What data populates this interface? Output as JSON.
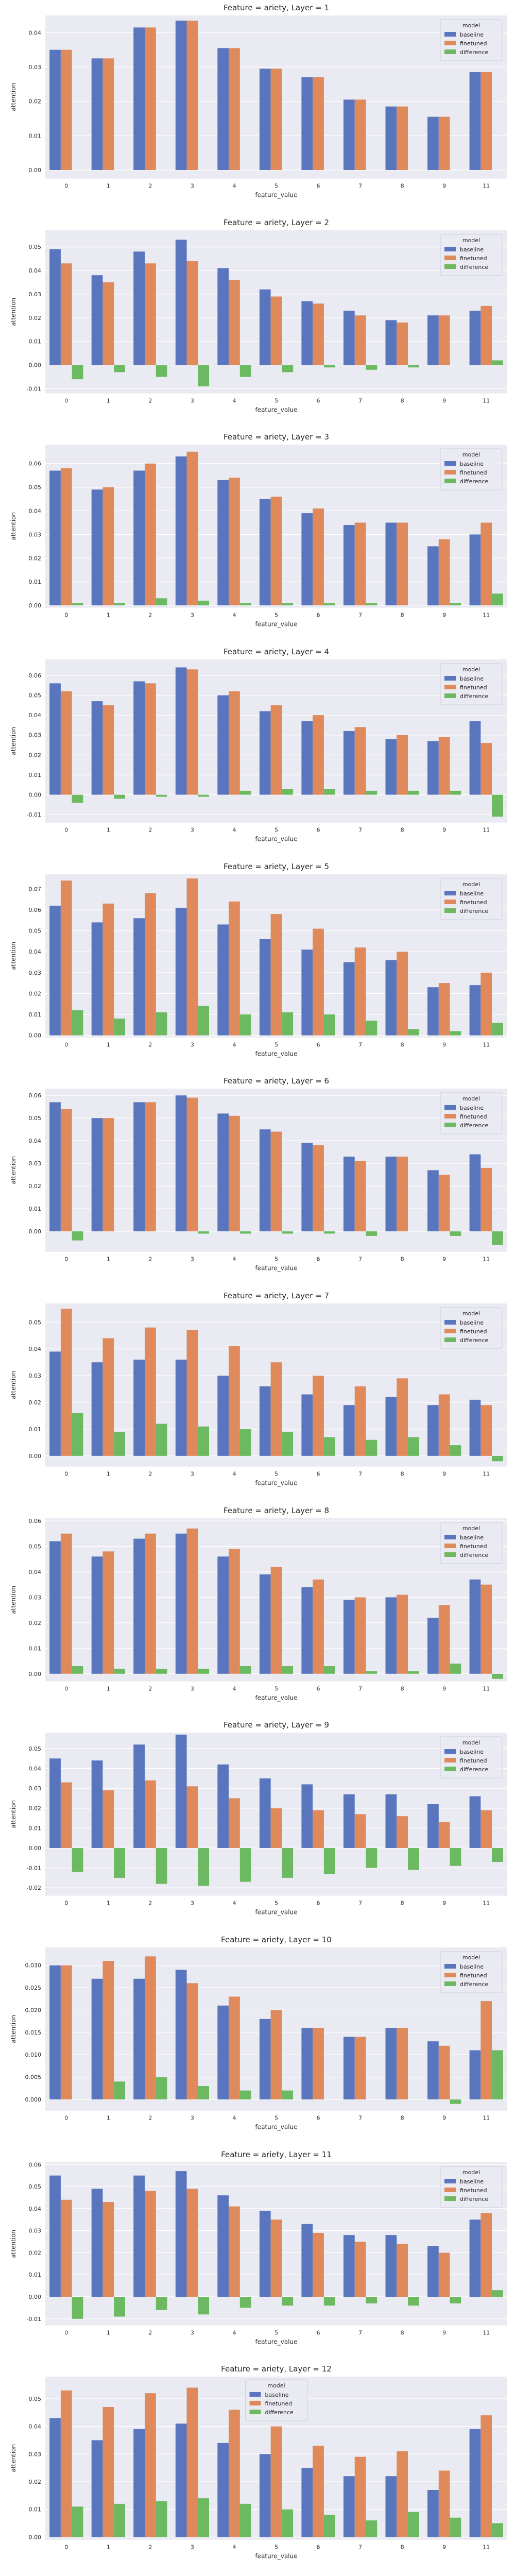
{
  "chart_data": [
    {
      "type": "bar",
      "title": "Feature = ariety, Layer = 1",
      "xlabel": "feature_value",
      "ylabel": "attention",
      "categories": [
        "0",
        "1",
        "2",
        "3",
        "4",
        "5",
        "6",
        "7",
        "8",
        "9",
        "11"
      ],
      "ylim": [
        -0.0025,
        0.045
      ],
      "yticks": [
        0.0,
        0.01,
        0.02,
        0.03,
        0.04
      ],
      "grid": true,
      "legend": {
        "title": "model",
        "position": "top-right"
      },
      "series": [
        {
          "name": "baseline",
          "color": "#5875be",
          "values": [
            0.035,
            0.0325,
            0.0415,
            0.0435,
            0.0355,
            0.0295,
            0.027,
            0.0205,
            0.0185,
            0.0155,
            0.0285
          ]
        },
        {
          "name": "finetuned",
          "color": "#e0895b",
          "values": [
            0.035,
            0.0325,
            0.0415,
            0.0435,
            0.0355,
            0.0295,
            0.027,
            0.0205,
            0.0185,
            0.0155,
            0.0285
          ]
        },
        {
          "name": "difference",
          "color": "#6cb962",
          "values": [
            0,
            0,
            0,
            0,
            0,
            0,
            0,
            0,
            0,
            0,
            0
          ]
        }
      ]
    },
    {
      "type": "bar",
      "title": "Feature = ariety, Layer = 2",
      "xlabel": "feature_value",
      "ylabel": "attention",
      "categories": [
        "0",
        "1",
        "2",
        "3",
        "4",
        "5",
        "6",
        "7",
        "8",
        "9",
        "11"
      ],
      "ylim": [
        -0.012,
        0.057
      ],
      "yticks": [
        -0.01,
        0.0,
        0.01,
        0.02,
        0.03,
        0.04,
        0.05
      ],
      "grid": true,
      "legend": {
        "title": "model",
        "position": "top-right"
      },
      "series": [
        {
          "name": "baseline",
          "color": "#5875be",
          "values": [
            0.049,
            0.038,
            0.048,
            0.053,
            0.041,
            0.032,
            0.027,
            0.023,
            0.019,
            0.021,
            0.023
          ]
        },
        {
          "name": "finetuned",
          "color": "#e0895b",
          "values": [
            0.043,
            0.035,
            0.043,
            0.044,
            0.036,
            0.029,
            0.026,
            0.021,
            0.018,
            0.021,
            0.025
          ]
        },
        {
          "name": "difference",
          "color": "#6cb962",
          "values": [
            -0.006,
            -0.003,
            -0.005,
            -0.009,
            -0.005,
            -0.003,
            -0.001,
            -0.002,
            -0.001,
            0.0,
            0.002
          ]
        }
      ]
    },
    {
      "type": "bar",
      "title": "Feature = ariety, Layer = 3",
      "xlabel": "feature_value",
      "ylabel": "attention",
      "categories": [
        "0",
        "1",
        "2",
        "3",
        "4",
        "5",
        "6",
        "7",
        "8",
        "9",
        "11"
      ],
      "ylim": [
        -0.001,
        0.068
      ],
      "yticks": [
        0.0,
        0.01,
        0.02,
        0.03,
        0.04,
        0.05,
        0.06
      ],
      "grid": true,
      "legend": {
        "title": "model",
        "position": "top-right"
      },
      "series": [
        {
          "name": "baseline",
          "color": "#5875be",
          "values": [
            0.057,
            0.049,
            0.057,
            0.063,
            0.053,
            0.045,
            0.039,
            0.034,
            0.035,
            0.025,
            0.03
          ]
        },
        {
          "name": "finetuned",
          "color": "#e0895b",
          "values": [
            0.058,
            0.05,
            0.06,
            0.065,
            0.054,
            0.046,
            0.041,
            0.035,
            0.035,
            0.028,
            0.035
          ]
        },
        {
          "name": "difference",
          "color": "#6cb962",
          "values": [
            0.001,
            0.001,
            0.003,
            0.002,
            0.001,
            0.001,
            0.001,
            0.001,
            0.0,
            0.001,
            0.005
          ]
        }
      ]
    },
    {
      "type": "bar",
      "title": "Feature = ariety, Layer = 4",
      "xlabel": "feature_value",
      "ylabel": "attention",
      "categories": [
        "0",
        "1",
        "2",
        "3",
        "4",
        "5",
        "6",
        "7",
        "8",
        "9",
        "11"
      ],
      "ylim": [
        -0.014,
        0.068
      ],
      "yticks": [
        -0.01,
        0.0,
        0.01,
        0.02,
        0.03,
        0.04,
        0.05,
        0.06
      ],
      "grid": true,
      "legend": {
        "title": "model",
        "position": "top-right"
      },
      "series": [
        {
          "name": "baseline",
          "color": "#5875be",
          "values": [
            0.056,
            0.047,
            0.057,
            0.064,
            0.05,
            0.042,
            0.037,
            0.032,
            0.028,
            0.027,
            0.037
          ]
        },
        {
          "name": "finetuned",
          "color": "#e0895b",
          "values": [
            0.052,
            0.045,
            0.056,
            0.063,
            0.052,
            0.045,
            0.04,
            0.034,
            0.03,
            0.029,
            0.026
          ]
        },
        {
          "name": "difference",
          "color": "#6cb962",
          "values": [
            -0.004,
            -0.002,
            -0.001,
            -0.001,
            0.002,
            0.003,
            0.003,
            0.002,
            0.002,
            0.002,
            -0.011
          ]
        }
      ]
    },
    {
      "type": "bar",
      "title": "Feature = ariety, Layer = 5",
      "xlabel": "feature_value",
      "ylabel": "attention",
      "categories": [
        "0",
        "1",
        "2",
        "3",
        "4",
        "5",
        "6",
        "7",
        "8",
        "9",
        "11"
      ],
      "ylim": [
        -0.001,
        0.077
      ],
      "yticks": [
        0.0,
        0.01,
        0.02,
        0.03,
        0.04,
        0.05,
        0.06,
        0.07
      ],
      "grid": true,
      "legend": {
        "title": "model",
        "position": "top-right"
      },
      "series": [
        {
          "name": "baseline",
          "color": "#5875be",
          "values": [
            0.062,
            0.054,
            0.056,
            0.061,
            0.053,
            0.046,
            0.041,
            0.035,
            0.036,
            0.023,
            0.024
          ]
        },
        {
          "name": "finetuned",
          "color": "#e0895b",
          "values": [
            0.074,
            0.063,
            0.068,
            0.075,
            0.064,
            0.058,
            0.051,
            0.042,
            0.04,
            0.025,
            0.03
          ]
        },
        {
          "name": "difference",
          "color": "#6cb962",
          "values": [
            0.012,
            0.008,
            0.011,
            0.014,
            0.01,
            0.011,
            0.01,
            0.007,
            0.003,
            0.002,
            0.006
          ]
        }
      ]
    },
    {
      "type": "bar",
      "title": "Feature = ariety, Layer = 6",
      "xlabel": "feature_value",
      "ylabel": "attention",
      "categories": [
        "0",
        "1",
        "2",
        "3",
        "4",
        "5",
        "6",
        "7",
        "8",
        "9",
        "11"
      ],
      "ylim": [
        -0.009,
        0.063
      ],
      "yticks": [
        0.0,
        0.01,
        0.02,
        0.03,
        0.04,
        0.05,
        0.06
      ],
      "grid": true,
      "legend": {
        "title": "model",
        "position": "top-right"
      },
      "series": [
        {
          "name": "baseline",
          "color": "#5875be",
          "values": [
            0.057,
            0.05,
            0.057,
            0.06,
            0.052,
            0.045,
            0.039,
            0.033,
            0.033,
            0.027,
            0.034
          ]
        },
        {
          "name": "finetuned",
          "color": "#e0895b",
          "values": [
            0.054,
            0.05,
            0.057,
            0.059,
            0.051,
            0.044,
            0.038,
            0.031,
            0.033,
            0.025,
            0.028
          ]
        },
        {
          "name": "difference",
          "color": "#6cb962",
          "values": [
            -0.004,
            0.0,
            0.0,
            -0.001,
            -0.001,
            -0.001,
            -0.001,
            -0.002,
            0.0,
            -0.002,
            -0.006
          ]
        }
      ]
    },
    {
      "type": "bar",
      "title": "Feature = ariety, Layer = 7",
      "xlabel": "feature_value",
      "ylabel": "attention",
      "categories": [
        "0",
        "1",
        "2",
        "3",
        "4",
        "5",
        "6",
        "7",
        "8",
        "9",
        "11"
      ],
      "ylim": [
        -0.004,
        0.057
      ],
      "yticks": [
        0.0,
        0.01,
        0.02,
        0.03,
        0.04,
        0.05
      ],
      "grid": true,
      "legend": {
        "title": "model",
        "position": "top-right"
      },
      "series": [
        {
          "name": "baseline",
          "color": "#5875be",
          "values": [
            0.039,
            0.035,
            0.036,
            0.036,
            0.03,
            0.026,
            0.023,
            0.019,
            0.022,
            0.019,
            0.021
          ]
        },
        {
          "name": "finetuned",
          "color": "#e0895b",
          "values": [
            0.055,
            0.044,
            0.048,
            0.047,
            0.041,
            0.035,
            0.03,
            0.026,
            0.029,
            0.023,
            0.019
          ]
        },
        {
          "name": "difference",
          "color": "#6cb962",
          "values": [
            0.016,
            0.009,
            0.012,
            0.011,
            0.01,
            0.009,
            0.007,
            0.006,
            0.007,
            0.004,
            -0.002
          ]
        }
      ]
    },
    {
      "type": "bar",
      "title": "Feature = ariety, Layer = 8",
      "xlabel": "feature_value",
      "ylabel": "attention",
      "categories": [
        "0",
        "1",
        "2",
        "3",
        "4",
        "5",
        "6",
        "7",
        "8",
        "9",
        "11"
      ],
      "ylim": [
        -0.003,
        0.061
      ],
      "yticks": [
        0.0,
        0.01,
        0.02,
        0.03,
        0.04,
        0.05,
        0.06
      ],
      "grid": true,
      "legend": {
        "title": "model",
        "position": "top-right"
      },
      "series": [
        {
          "name": "baseline",
          "color": "#5875be",
          "values": [
            0.052,
            0.046,
            0.053,
            0.055,
            0.046,
            0.039,
            0.034,
            0.029,
            0.03,
            0.022,
            0.037
          ]
        },
        {
          "name": "finetuned",
          "color": "#e0895b",
          "values": [
            0.055,
            0.048,
            0.055,
            0.057,
            0.049,
            0.042,
            0.037,
            0.03,
            0.031,
            0.027,
            0.035
          ]
        },
        {
          "name": "difference",
          "color": "#6cb962",
          "values": [
            0.003,
            0.002,
            0.002,
            0.002,
            0.003,
            0.003,
            0.003,
            0.001,
            0.001,
            0.004,
            -0.002
          ]
        }
      ]
    },
    {
      "type": "bar",
      "title": "Feature = ariety, Layer = 9",
      "xlabel": "feature_value",
      "ylabel": "attention",
      "categories": [
        "0",
        "1",
        "2",
        "3",
        "4",
        "5",
        "6",
        "7",
        "8",
        "9",
        "11"
      ],
      "ylim": [
        -0.024,
        0.058
      ],
      "yticks": [
        -0.02,
        -0.01,
        0.0,
        0.01,
        0.02,
        0.03,
        0.04,
        0.05
      ],
      "grid": true,
      "legend": {
        "title": "model",
        "position": "top-right"
      },
      "series": [
        {
          "name": "baseline",
          "color": "#5875be",
          "values": [
            0.045,
            0.044,
            0.052,
            0.057,
            0.042,
            0.035,
            0.032,
            0.027,
            0.027,
            0.022,
            0.026
          ]
        },
        {
          "name": "finetuned",
          "color": "#e0895b",
          "values": [
            0.033,
            0.029,
            0.034,
            0.031,
            0.025,
            0.02,
            0.019,
            0.017,
            0.016,
            0.013,
            0.019
          ]
        },
        {
          "name": "difference",
          "color": "#6cb962",
          "values": [
            -0.012,
            -0.015,
            -0.018,
            -0.019,
            -0.017,
            -0.015,
            -0.013,
            -0.01,
            -0.011,
            -0.009,
            -0.007
          ]
        }
      ]
    },
    {
      "type": "bar",
      "title": "Feature = ariety, Layer = 10",
      "xlabel": "feature_value",
      "ylabel": "attention",
      "categories": [
        "0",
        "1",
        "2",
        "3",
        "4",
        "5",
        "6",
        "7",
        "8",
        "9",
        "11"
      ],
      "ylim": [
        -0.0025,
        0.034
      ],
      "yticks": [
        0.0,
        0.005,
        0.01,
        0.015,
        0.02,
        0.025,
        0.03
      ],
      "grid": true,
      "legend": {
        "title": "model",
        "position": "top-right"
      },
      "series": [
        {
          "name": "baseline",
          "color": "#5875be",
          "values": [
            0.03,
            0.027,
            0.027,
            0.029,
            0.021,
            0.018,
            0.016,
            0.014,
            0.016,
            0.013,
            0.011
          ]
        },
        {
          "name": "finetuned",
          "color": "#e0895b",
          "values": [
            0.03,
            0.031,
            0.032,
            0.026,
            0.023,
            0.02,
            0.016,
            0.014,
            0.016,
            0.012,
            0.022
          ]
        },
        {
          "name": "difference",
          "color": "#6cb962",
          "values": [
            0.0,
            0.004,
            0.005,
            0.003,
            0.002,
            0.002,
            0.0,
            0.0,
            0.0,
            -0.001,
            0.011
          ]
        }
      ]
    },
    {
      "type": "bar",
      "title": "Feature = ariety, Layer = 11",
      "xlabel": "feature_value",
      "ylabel": "attention",
      "categories": [
        "0",
        "1",
        "2",
        "3",
        "4",
        "5",
        "6",
        "7",
        "8",
        "9",
        "11"
      ],
      "ylim": [
        -0.013,
        0.061
      ],
      "yticks": [
        -0.01,
        0.0,
        0.01,
        0.02,
        0.03,
        0.04,
        0.05,
        0.06
      ],
      "grid": true,
      "legend": {
        "title": "model",
        "position": "top-right"
      },
      "series": [
        {
          "name": "baseline",
          "color": "#5875be",
          "values": [
            0.055,
            0.049,
            0.055,
            0.057,
            0.046,
            0.039,
            0.033,
            0.028,
            0.028,
            0.023,
            0.035
          ]
        },
        {
          "name": "finetuned",
          "color": "#e0895b",
          "values": [
            0.044,
            0.043,
            0.048,
            0.049,
            0.041,
            0.035,
            0.029,
            0.025,
            0.024,
            0.02,
            0.038
          ]
        },
        {
          "name": "difference",
          "color": "#6cb962",
          "values": [
            -0.01,
            -0.009,
            -0.006,
            -0.008,
            -0.005,
            -0.004,
            -0.004,
            -0.003,
            -0.004,
            -0.003,
            0.003
          ]
        }
      ]
    },
    {
      "type": "bar",
      "title": "Feature = ariety, Layer = 12",
      "xlabel": "feature_value",
      "ylabel": "attention",
      "categories": [
        "0",
        "1",
        "2",
        "3",
        "4",
        "5",
        "6",
        "7",
        "8",
        "9",
        "11"
      ],
      "ylim": [
        -0.001,
        0.058
      ],
      "yticks": [
        0.0,
        0.01,
        0.02,
        0.03,
        0.04,
        0.05
      ],
      "grid": true,
      "legend": {
        "title": "model",
        "position": "top-center"
      },
      "series": [
        {
          "name": "baseline",
          "color": "#5875be",
          "values": [
            0.043,
            0.035,
            0.039,
            0.041,
            0.034,
            0.03,
            0.025,
            0.022,
            0.022,
            0.017,
            0.039
          ]
        },
        {
          "name": "finetuned",
          "color": "#e0895b",
          "values": [
            0.053,
            0.047,
            0.052,
            0.054,
            0.046,
            0.04,
            0.033,
            0.029,
            0.031,
            0.024,
            0.044
          ]
        },
        {
          "name": "difference",
          "color": "#6cb962",
          "values": [
            0.011,
            0.012,
            0.013,
            0.014,
            0.012,
            0.01,
            0.008,
            0.006,
            0.009,
            0.007,
            0.005
          ]
        }
      ]
    }
  ]
}
